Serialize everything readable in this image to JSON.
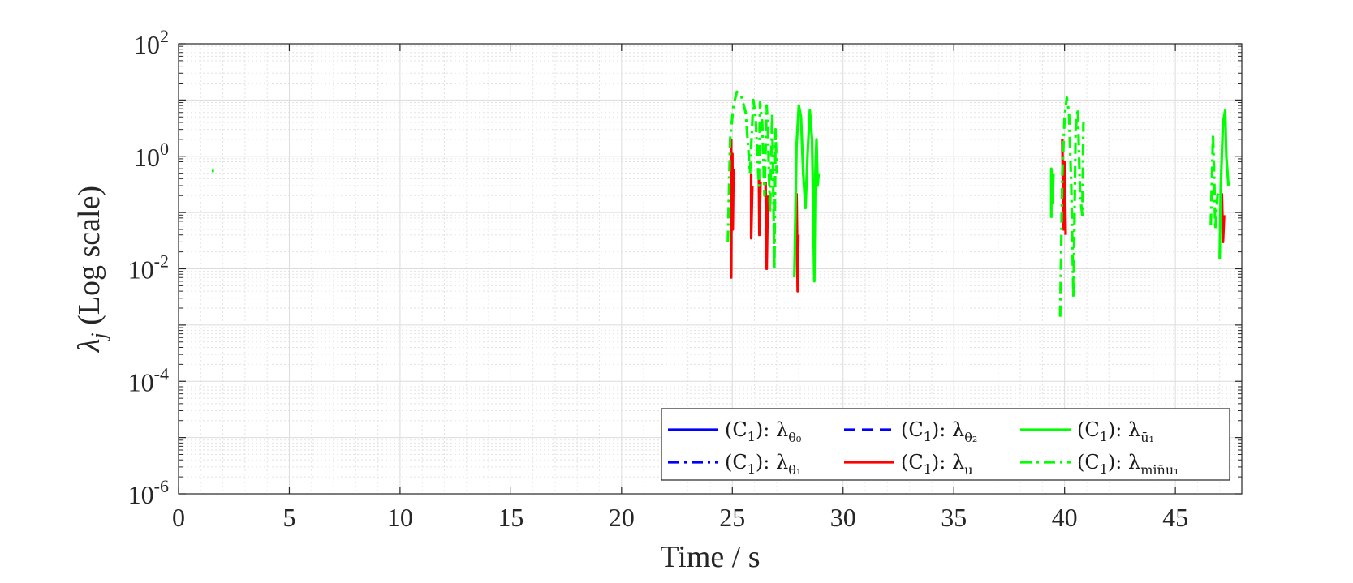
{
  "chart_data": {
    "type": "line",
    "xlabel": "Time / s",
    "ylabel": "λ_j (Log scale)",
    "ylabel_parts": {
      "symbol": "λ",
      "sub": "j",
      "rest": " (Log scale)"
    },
    "xlim": [
      0,
      48
    ],
    "ylim": [
      1e-06,
      100
    ],
    "yscale": "log",
    "grid": true,
    "xticks": [
      0,
      5,
      10,
      15,
      20,
      25,
      30,
      35,
      40,
      45
    ],
    "yticks": [
      {
        "value": 1e-06,
        "base": "10",
        "exp": "-6"
      },
      {
        "value": 0.0001,
        "base": "10",
        "exp": "-4"
      },
      {
        "value": 0.01,
        "base": "10",
        "exp": "-2"
      },
      {
        "value": 1,
        "base": "10",
        "exp": "0"
      },
      {
        "value": 100,
        "base": "10",
        "exp": "2"
      }
    ],
    "legend_position": "lower-right",
    "series": [
      {
        "name": "(C1): λθ0",
        "label_prefix": "(C",
        "label_prefix_sub": "1",
        "label_mid": "):  λ",
        "label_sub": "θ₀",
        "color": "#0000ff",
        "dash": "solid",
        "x": [],
        "y": []
      },
      {
        "name": "(C1): λθ1",
        "label_prefix": "(C",
        "label_prefix_sub": "1",
        "label_mid": "):  λ",
        "label_sub": "θ₁",
        "color": "#0000ff",
        "dash": "dashdot",
        "x": [],
        "y": []
      },
      {
        "name": "(C1): λθ2",
        "label_prefix": "(C",
        "label_prefix_sub": "1",
        "label_mid": "):  λ",
        "label_sub": "θ₂",
        "color": "#0000ff",
        "dash": "dashed",
        "x": [],
        "y": []
      },
      {
        "name": "(C1): λu",
        "label_prefix": "(C",
        "label_prefix_sub": "1",
        "label_mid": "):  λ",
        "label_sub": "u",
        "color": "#ff0000",
        "dash": "solid",
        "x": [
          24.95,
          24.95,
          24.97,
          25.0,
          25.02,
          25.05,
          null,
          25.85,
          25.85,
          25.9,
          null,
          26.2,
          26.22,
          26.27,
          null,
          26.5,
          26.55,
          26.6,
          null,
          27.9,
          27.95,
          27.98,
          null,
          39.9,
          39.95,
          40.0,
          40.05,
          null,
          47.1,
          47.15,
          47.2
        ],
        "y": [
          2.0,
          0.007,
          0.6,
          1.1,
          0.05,
          0.6,
          null,
          0.5,
          0.035,
          0.3,
          null,
          0.5,
          0.04,
          0.35,
          null,
          0.35,
          0.01,
          0.2,
          null,
          0.22,
          0.004,
          0.04,
          null,
          2.0,
          0.05,
          0.8,
          0.04,
          null,
          0.22,
          0.03,
          0.09
        ]
      },
      {
        "name": "(C1): λū1",
        "label_prefix": "(C",
        "label_prefix_sub": "1",
        "label_mid": "):  λ",
        "label_sub": "ū₁",
        "color": "#00ff00",
        "dash": "solid",
        "x": [
          1.5,
          1.6,
          null,
          27.8,
          27.9,
          28.0,
          28.1,
          28.2,
          28.3,
          28.4,
          28.5,
          28.6,
          28.7,
          28.75,
          28.8,
          28.85,
          28.9,
          null,
          39.4,
          39.4,
          39.45,
          39.5,
          null,
          47.0,
          47.05,
          47.15,
          47.25,
          47.3,
          47.4
        ],
        "y": [
          0.55,
          0.55,
          null,
          0.007,
          1.5,
          8.0,
          5.0,
          0.5,
          0.12,
          1.2,
          6.5,
          2.0,
          0.006,
          0.5,
          2.0,
          0.3,
          0.5,
          null,
          0.08,
          0.6,
          0.15,
          0.5,
          null,
          0.015,
          0.3,
          4.0,
          6.5,
          1.0,
          0.3
        ]
      },
      {
        "name": "(C1): λminu1",
        "label_prefix": "(C",
        "label_prefix_sub": "1",
        "label_mid": "):  λ",
        "label_sub": "min̄u₁",
        "color": "#00ff00",
        "dash": "dashdot",
        "x": [
          24.8,
          24.9,
          25.05,
          25.2,
          25.4,
          25.6,
          25.8,
          25.85,
          25.95,
          26.05,
          26.2,
          26.25,
          26.35,
          26.45,
          26.55,
          26.6,
          26.7,
          26.8,
          26.9,
          26.95,
          27.0,
          null,
          39.8,
          39.9,
          40.0,
          40.1,
          40.2,
          40.3,
          40.4,
          40.5,
          40.6,
          40.7,
          40.8,
          40.85,
          null,
          46.6,
          46.7,
          46.75,
          46.8,
          46.9,
          47.0
        ],
        "y": [
          0.03,
          2.0,
          8.0,
          14.0,
          12.0,
          6.0,
          0.5,
          1.5,
          10.0,
          5.0,
          0.3,
          9.0,
          4.0,
          0.2,
          8.0,
          3.0,
          0.1,
          6.0,
          0.01,
          3.0,
          0.5,
          null,
          0.0014,
          0.5,
          5.0,
          11.0,
          6.0,
          0.3,
          0.003,
          3.0,
          7.0,
          0.2,
          0.09,
          4.0,
          null,
          0.06,
          2.5,
          0.5,
          0.05,
          0.2,
          0.25
        ]
      }
    ]
  }
}
